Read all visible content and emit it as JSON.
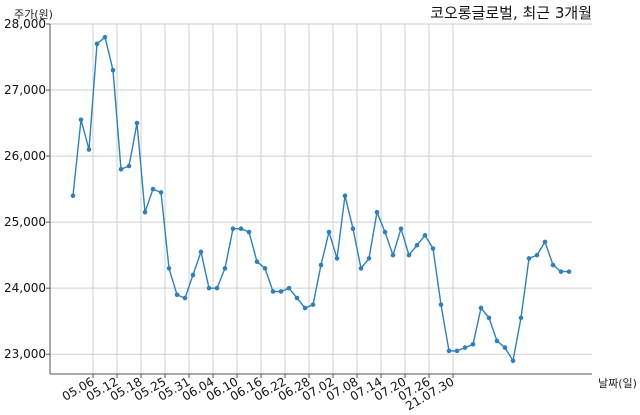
{
  "chart_data": {
    "type": "line",
    "title": "코오롱글로벌, 최근 3개월",
    "xlabel": "날짜(일)",
    "ylabel": "주가(원)",
    "ylim": [
      22700,
      28000
    ],
    "grid": true,
    "color": "#2f80b8",
    "y_ticks": [
      23000,
      24000,
      25000,
      26000,
      27000,
      28000
    ],
    "y_tick_labels": [
      "23,000",
      "24,000",
      "25,000",
      "26,000",
      "27,000",
      "28,000"
    ],
    "x_tick_labels": [
      "05.06",
      "05.12",
      "05.18",
      "05.25",
      "05.31",
      "06.04",
      "06.10",
      "06.16",
      "06.22",
      "06.28",
      "07.02",
      "07.08",
      "07.14",
      "07.20",
      "07.26",
      "21.07.30"
    ],
    "x_tick_index": [
      2.5,
      5.5,
      8.5,
      11.5,
      14.5,
      17.5,
      20.5,
      23.5,
      26.5,
      29.5,
      32.5,
      35.5,
      38.5,
      41.5,
      44.5,
      47.5
    ],
    "series": [
      {
        "values": [
          25400,
          26550,
          26100,
          27700,
          27800,
          27300,
          25800,
          25850,
          26500,
          25150,
          25500,
          25450,
          24300,
          23900,
          23850,
          24200,
          24550,
          24000,
          24000,
          24300,
          24900,
          24900,
          24850,
          24400,
          24300,
          23950,
          23950,
          24000,
          23850,
          23700,
          23750,
          24350,
          24850,
          24450,
          25400,
          24900,
          24300,
          24450,
          25150,
          24850,
          24500,
          24900,
          24500,
          24650,
          24800,
          24600,
          23750,
          23050,
          23050,
          23100,
          23150,
          23700,
          23550,
          23200,
          23100,
          22900,
          23550,
          24450,
          24500,
          24700,
          24350,
          24250,
          24250
        ]
      }
    ]
  }
}
